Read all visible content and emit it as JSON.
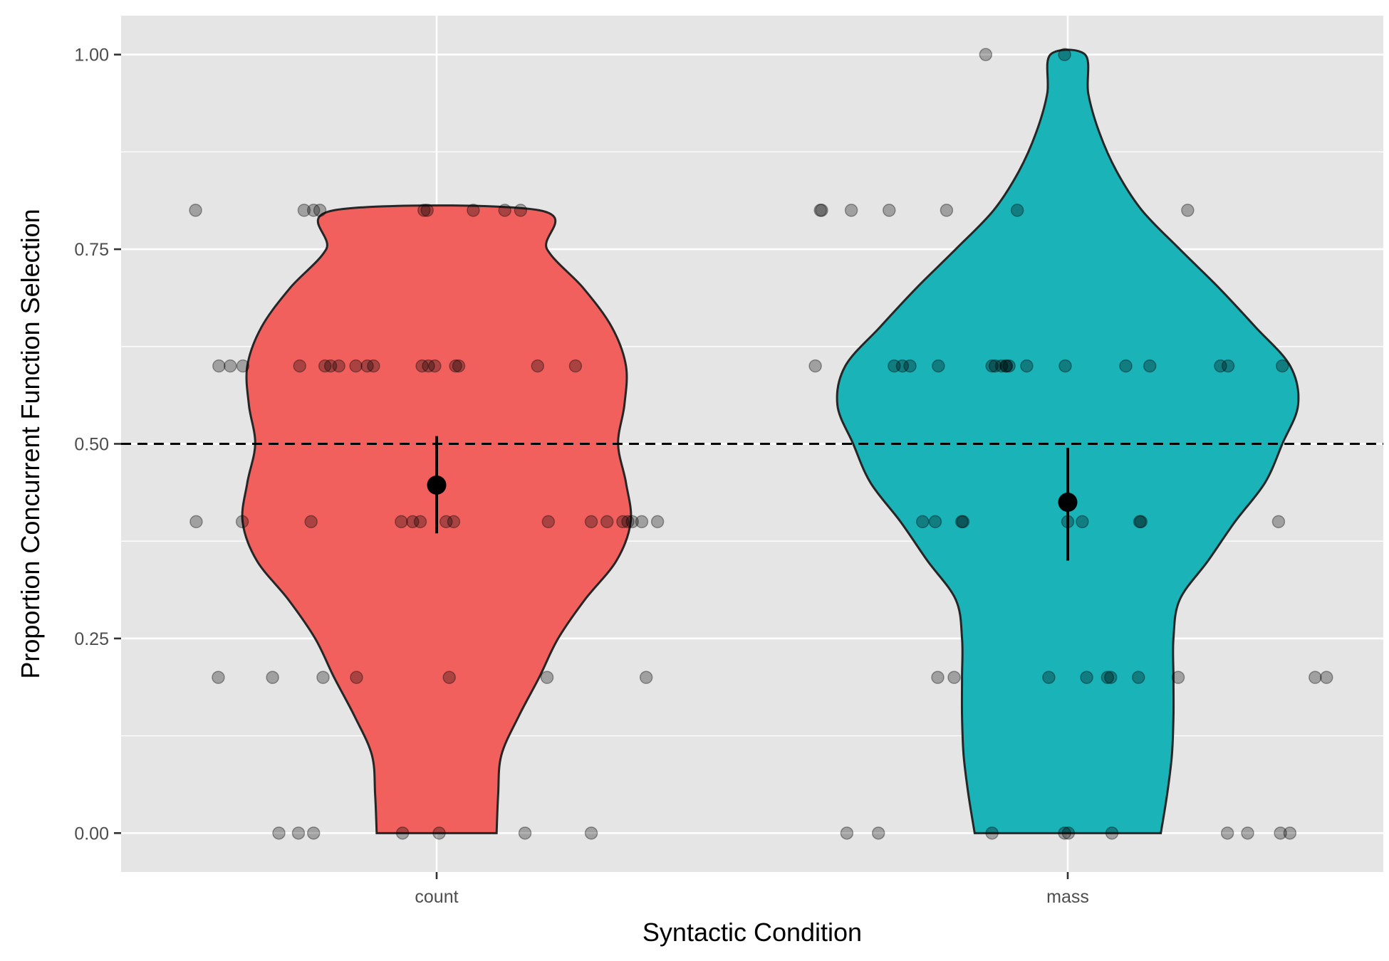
{
  "chart_data": {
    "type": "violin",
    "xlabel": "Syntactic Condition",
    "ylabel": "Proportion Concurrent Function Selection",
    "categories": [
      "count",
      "mass"
    ],
    "ylim": [
      -0.05,
      1.05
    ],
    "yticks": [
      0.0,
      0.25,
      0.5,
      0.75,
      1.0
    ],
    "ytick_labels": [
      "0.00",
      "0.25",
      "0.50",
      "0.75",
      "1.00"
    ],
    "reference_line": {
      "y": 0.5,
      "style": "dashed",
      "color": "#000000"
    },
    "grid": true,
    "legend": "none",
    "colors": {
      "panel_background": "#e5e5e5",
      "grid": "#ffffff",
      "count_fill": "#f2605e",
      "mass_fill": "#19b3b8",
      "violin_outline": "#262626",
      "point": "#000000",
      "summary_point": "#000000"
    },
    "series": [
      {
        "category": "count",
        "mean": 0.447,
        "ci": [
          0.385,
          0.51
        ],
        "violin_range": [
          0.0,
          0.8
        ],
        "density": [
          [
            0.0,
            0.38
          ],
          [
            0.05,
            0.39
          ],
          [
            0.1,
            0.41
          ],
          [
            0.15,
            0.52
          ],
          [
            0.2,
            0.65
          ],
          [
            0.25,
            0.77
          ],
          [
            0.3,
            0.94
          ],
          [
            0.35,
            1.14
          ],
          [
            0.4,
            1.23
          ],
          [
            0.45,
            1.2
          ],
          [
            0.5,
            1.15
          ],
          [
            0.55,
            1.19
          ],
          [
            0.6,
            1.2
          ],
          [
            0.65,
            1.11
          ],
          [
            0.7,
            0.93
          ],
          [
            0.75,
            0.7
          ],
          [
            0.8,
            0.65
          ]
        ],
        "points": [
          [
            -0.382,
            0.8
          ],
          [
            -0.21,
            0.8
          ],
          [
            -0.195,
            0.8
          ],
          [
            -0.185,
            0.8
          ],
          [
            -0.02,
            0.8
          ],
          [
            -0.015,
            0.8
          ],
          [
            0.058,
            0.8
          ],
          [
            0.108,
            0.8
          ],
          [
            0.133,
            0.8
          ],
          [
            -0.345,
            0.6
          ],
          [
            -0.327,
            0.6
          ],
          [
            -0.307,
            0.6
          ],
          [
            -0.217,
            0.6
          ],
          [
            -0.177,
            0.6
          ],
          [
            -0.168,
            0.6
          ],
          [
            -0.155,
            0.6
          ],
          [
            -0.128,
            0.6
          ],
          [
            -0.11,
            0.6
          ],
          [
            -0.1,
            0.6
          ],
          [
            -0.023,
            0.6
          ],
          [
            -0.013,
            0.6
          ],
          [
            -0.003,
            0.6
          ],
          [
            0.03,
            0.6
          ],
          [
            0.035,
            0.6
          ],
          [
            0.16,
            0.6
          ],
          [
            0.22,
            0.6
          ],
          [
            -0.381,
            0.4
          ],
          [
            -0.308,
            0.4
          ],
          [
            -0.199,
            0.4
          ],
          [
            -0.056,
            0.4
          ],
          [
            -0.038,
            0.4
          ],
          [
            -0.026,
            0.4
          ],
          [
            0.015,
            0.4
          ],
          [
            0.027,
            0.4
          ],
          [
            0.177,
            0.4
          ],
          [
            0.245,
            0.4
          ],
          [
            0.27,
            0.4
          ],
          [
            0.295,
            0.4
          ],
          [
            0.303,
            0.4
          ],
          [
            0.31,
            0.4
          ],
          [
            0.325,
            0.4
          ],
          [
            0.35,
            0.4
          ],
          [
            -0.346,
            0.2
          ],
          [
            -0.26,
            0.2
          ],
          [
            -0.18,
            0.2
          ],
          [
            -0.127,
            0.2
          ],
          [
            0.02,
            0.2
          ],
          [
            0.175,
            0.2
          ],
          [
            0.332,
            0.2
          ],
          [
            -0.25,
            0.0
          ],
          [
            -0.219,
            0.0
          ],
          [
            -0.195,
            0.0
          ],
          [
            -0.054,
            0.0
          ],
          [
            0.004,
            0.0
          ],
          [
            0.14,
            0.0
          ],
          [
            0.245,
            0.0
          ]
        ]
      },
      {
        "category": "mass",
        "mean": 0.425,
        "ci": [
          0.35,
          0.495
        ],
        "violin_range": [
          0.0,
          1.0
        ],
        "density": [
          [
            0.0,
            0.59
          ],
          [
            0.05,
            0.63
          ],
          [
            0.1,
            0.66
          ],
          [
            0.15,
            0.67
          ],
          [
            0.2,
            0.67
          ],
          [
            0.25,
            0.67
          ],
          [
            0.3,
            0.71
          ],
          [
            0.35,
            0.89
          ],
          [
            0.4,
            1.06
          ],
          [
            0.45,
            1.25
          ],
          [
            0.5,
            1.36
          ],
          [
            0.55,
            1.46
          ],
          [
            0.6,
            1.41
          ],
          [
            0.65,
            1.19
          ],
          [
            0.7,
            0.96
          ],
          [
            0.75,
            0.71
          ],
          [
            0.8,
            0.47
          ],
          [
            0.85,
            0.31
          ],
          [
            0.9,
            0.2
          ],
          [
            0.95,
            0.13
          ],
          [
            1.0,
            0.11
          ]
        ],
        "points": [
          [
            -0.13,
            1.0
          ],
          [
            -0.005,
            1.0
          ],
          [
            -0.392,
            0.8
          ],
          [
            -0.39,
            0.8
          ],
          [
            -0.343,
            0.8
          ],
          [
            -0.283,
            0.8
          ],
          [
            -0.192,
            0.8
          ],
          [
            -0.08,
            0.8
          ],
          [
            0.19,
            0.8
          ],
          [
            -0.4,
            0.6
          ],
          [
            -0.275,
            0.6
          ],
          [
            -0.262,
            0.6
          ],
          [
            -0.25,
            0.6
          ],
          [
            -0.205,
            0.6
          ],
          [
            -0.12,
            0.6
          ],
          [
            -0.115,
            0.6
          ],
          [
            -0.105,
            0.6
          ],
          [
            -0.098,
            0.6
          ],
          [
            -0.097,
            0.6
          ],
          [
            -0.093,
            0.6
          ],
          [
            -0.065,
            0.6
          ],
          [
            -0.004,
            0.6
          ],
          [
            0.092,
            0.6
          ],
          [
            0.13,
            0.6
          ],
          [
            0.242,
            0.6
          ],
          [
            0.254,
            0.6
          ],
          [
            0.34,
            0.6
          ],
          [
            -0.23,
            0.4
          ],
          [
            -0.21,
            0.4
          ],
          [
            -0.168,
            0.4
          ],
          [
            -0.166,
            0.4
          ],
          [
            0.0,
            0.4
          ],
          [
            0.023,
            0.4
          ],
          [
            0.114,
            0.4
          ],
          [
            0.116,
            0.4
          ],
          [
            0.334,
            0.4
          ],
          [
            -0.206,
            0.2
          ],
          [
            -0.18,
            0.2
          ],
          [
            -0.03,
            0.2
          ],
          [
            0.03,
            0.2
          ],
          [
            0.063,
            0.2
          ],
          [
            0.068,
            0.2
          ],
          [
            0.112,
            0.2
          ],
          [
            0.175,
            0.2
          ],
          [
            0.392,
            0.2
          ],
          [
            0.41,
            0.2
          ],
          [
            -0.35,
            0.0
          ],
          [
            -0.3,
            0.0
          ],
          [
            -0.12,
            0.0
          ],
          [
            -0.005,
            0.0
          ],
          [
            0.001,
            0.0
          ],
          [
            0.07,
            0.0
          ],
          [
            0.253,
            0.0
          ],
          [
            0.285,
            0.0
          ],
          [
            0.337,
            0.0
          ],
          [
            0.352,
            0.0
          ]
        ]
      }
    ]
  }
}
